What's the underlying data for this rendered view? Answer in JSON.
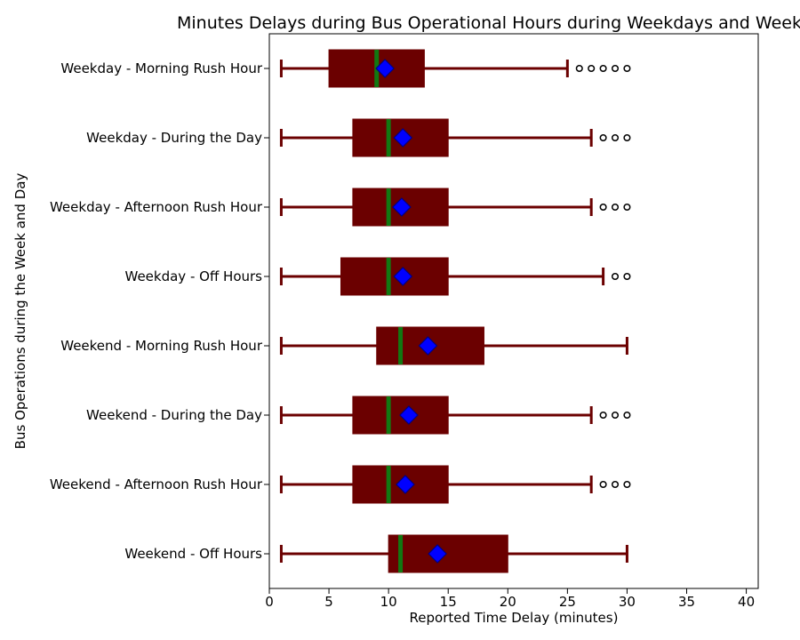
{
  "chart_data": {
    "type": "boxplot",
    "orientation": "horizontal",
    "title": "Minutes Delays during Bus Operational Hours during Weekdays and Weekends",
    "xlabel": "Reported Time Delay (minutes)",
    "ylabel": "Bus Operations during the Week and Day",
    "xlim": [
      0,
      41
    ],
    "xticks": [
      0,
      5,
      10,
      15,
      20,
      25,
      30,
      35,
      40
    ],
    "grid": false,
    "colors": {
      "box": "#6b0000",
      "whisker": "#6b0000",
      "median": "#127812",
      "mean": "#0000ff",
      "mean_edge": "#000080",
      "flier": "#000000"
    },
    "series": [
      {
        "label": "Weekday - Morning Rush Hour",
        "whisker_low": 1,
        "q1": 5,
        "median": 9,
        "q3": 13,
        "whisker_high": 25,
        "mean": 9.7,
        "outliers": [
          26,
          27,
          28,
          29,
          30
        ]
      },
      {
        "label": "Weekday - During the Day",
        "whisker_low": 1,
        "q1": 7,
        "median": 10,
        "q3": 15,
        "whisker_high": 27,
        "mean": 11.2,
        "outliers": [
          28,
          29,
          30
        ]
      },
      {
        "label": "Weekday - Afternoon Rush Hour",
        "whisker_low": 1,
        "q1": 7,
        "median": 10,
        "q3": 15,
        "whisker_high": 27,
        "mean": 11.1,
        "outliers": [
          28,
          29,
          30
        ]
      },
      {
        "label": "Weekday - Off Hours",
        "whisker_low": 1,
        "q1": 6,
        "median": 10,
        "q3": 15,
        "whisker_high": 28,
        "mean": 11.2,
        "outliers": [
          29,
          30
        ]
      },
      {
        "label": "Weekend - Morning Rush Hour",
        "whisker_low": 1,
        "q1": 9,
        "median": 11,
        "q3": 18,
        "whisker_high": 30,
        "mean": 13.3,
        "outliers": []
      },
      {
        "label": "Weekend - During the Day",
        "whisker_low": 1,
        "q1": 7,
        "median": 10,
        "q3": 15,
        "whisker_high": 27,
        "mean": 11.7,
        "outliers": [
          28,
          29,
          30
        ]
      },
      {
        "label": "Weekend - Afternoon Rush Hour",
        "whisker_low": 1,
        "q1": 7,
        "median": 10,
        "q3": 15,
        "whisker_high": 27,
        "mean": 11.4,
        "outliers": [
          28,
          29,
          30
        ]
      },
      {
        "label": "Weekend - Off Hours",
        "whisker_low": 1,
        "q1": 10,
        "median": 11,
        "q3": 20,
        "whisker_high": 30,
        "mean": 14.1,
        "outliers": []
      }
    ]
  }
}
